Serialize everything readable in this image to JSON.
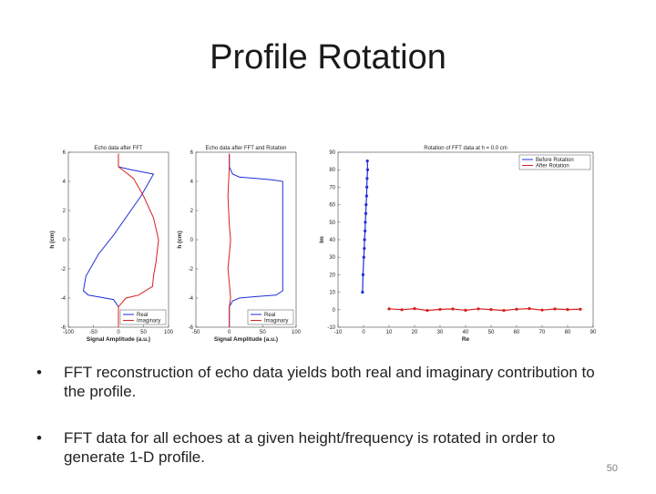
{
  "slide": {
    "title": "Profile Rotation",
    "page_number": "50",
    "bullet_symbol": "•",
    "bullets": [
      "FFT reconstruction of echo data yields both real and imaginary contribution to the profile.",
      "FFT data for all echoes at a given height/frequency is rotated in order to generate 1-D profile."
    ]
  },
  "chart_data": [
    {
      "type": "line",
      "title": "Echo data after FFT",
      "xlabel": "Signal Amplitude (a.u.)",
      "ylabel": "h (cm)",
      "xlim": [
        -100,
        100
      ],
      "ylim": [
        -6,
        6
      ],
      "xticks": [
        "-100",
        "-50",
        "0",
        "50",
        "100"
      ],
      "yticks": [
        "-6",
        "-4",
        "-2",
        "0",
        "2",
        "4",
        "6"
      ],
      "legend": [
        "Real",
        "Imaginary"
      ],
      "legend_position": "bottom-right",
      "colors": [
        "#1f2fd6",
        "#d62020"
      ],
      "series": [
        {
          "name": "Real",
          "x": [
            0,
            0,
            25,
            70,
            45,
            -10,
            -40,
            -65,
            -70,
            -60,
            -10,
            0,
            0
          ],
          "y": [
            5.9,
            5,
            4.8,
            4.5,
            3,
            0.3,
            -1,
            -2.5,
            -3.5,
            -3.8,
            -4.1,
            -4.6,
            -6
          ]
        },
        {
          "name": "Imaginary",
          "x": [
            0,
            0,
            15,
            30,
            50,
            70,
            80,
            75,
            70,
            68,
            40,
            15,
            0,
            0
          ],
          "y": [
            5.9,
            5,
            4.6,
            4.2,
            3,
            1.5,
            0,
            -1.5,
            -2.5,
            -3.2,
            -3.8,
            -4,
            -4.6,
            -6
          ]
        }
      ]
    },
    {
      "type": "line",
      "title": "Echo data after FFT and Rotation",
      "xlabel": "Signal Amplitude (a.u.)",
      "ylabel": "h (cm)",
      "xlim": [
        -50,
        100
      ],
      "ylim": [
        -6,
        6
      ],
      "xticks": [
        "-50",
        "0",
        "50",
        "100"
      ],
      "yticks": [
        "-6",
        "-4",
        "-2",
        "0",
        "2",
        "4",
        "6"
      ],
      "legend": [
        "Real",
        "Imaginary"
      ],
      "legend_position": "bottom-right",
      "colors": [
        "#1f2fd6",
        "#d62020"
      ],
      "series": [
        {
          "name": "Real",
          "x": [
            0,
            0,
            5,
            15,
            40,
            65,
            80,
            80,
            80,
            80,
            80,
            70,
            40,
            15,
            5,
            0,
            0
          ],
          "y": [
            5.9,
            5,
            4.5,
            4.3,
            4.2,
            4.1,
            4,
            2,
            0,
            -2,
            -3.5,
            -3.8,
            -3.9,
            -4,
            -4.2,
            -4.6,
            -6
          ]
        },
        {
          "name": "Imaginary",
          "x": [
            0,
            0,
            -2,
            0,
            2,
            0,
            -2,
            0,
            2,
            0,
            0
          ],
          "y": [
            5.9,
            5,
            3,
            1,
            0,
            -1,
            -2,
            -3,
            -4,
            -4.6,
            -6
          ]
        }
      ]
    },
    {
      "type": "scatter",
      "title": "Rotation of FFT data at h = 0.0 cm",
      "xlabel": "Re",
      "ylabel": "Im",
      "xlim": [
        -10,
        90
      ],
      "ylim": [
        -10,
        90
      ],
      "xticks": [
        "-10",
        "0",
        "10",
        "20",
        "30",
        "40",
        "50",
        "60",
        "70",
        "80",
        "90"
      ],
      "yticks": [
        "-10",
        "0",
        "10",
        "20",
        "30",
        "40",
        "50",
        "60",
        "70",
        "80",
        "90"
      ],
      "legend": [
        "Before Rotation",
        "After Rotation"
      ],
      "legend_position": "top-right",
      "colors": [
        "#1f2fd6",
        "#d62020"
      ],
      "series": [
        {
          "name": "Before Rotation",
          "x": [
            1.5,
            1.6,
            1.4,
            1.3,
            1.2,
            1.0,
            0.9,
            0.7,
            0.6,
            0.4,
            0.3,
            0.1,
            -0.2,
            -0.4
          ],
          "y": [
            85,
            80,
            75,
            70,
            65,
            60,
            55,
            50,
            45,
            40,
            35,
            30,
            20,
            10
          ]
        },
        {
          "name": "After Rotation",
          "x": [
            10,
            15,
            20,
            25,
            30,
            35,
            40,
            45,
            50,
            55,
            60,
            65,
            70,
            75,
            80,
            85
          ],
          "y": [
            0.5,
            0,
            0.6,
            -0.4,
            0.2,
            0.4,
            -0.3,
            0.5,
            0.1,
            -0.4,
            0.3,
            0.6,
            -0.2,
            0.4,
            0.1,
            0.3
          ]
        }
      ]
    }
  ]
}
